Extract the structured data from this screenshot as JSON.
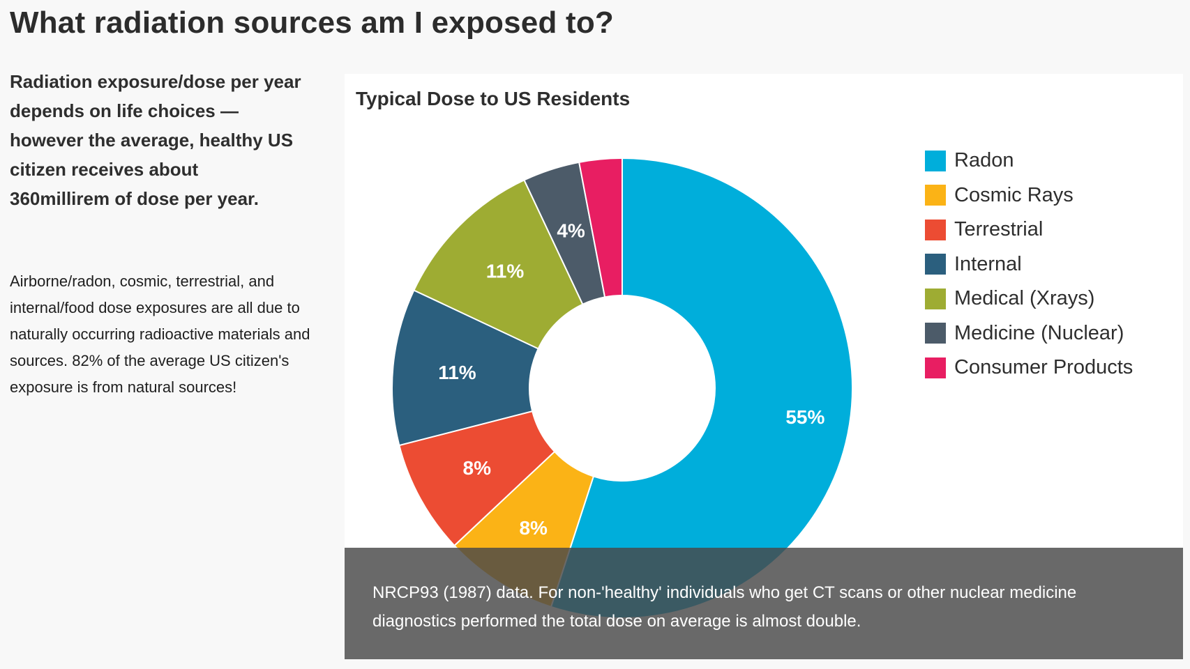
{
  "page": {
    "title": "What radiation sources am I exposed to?",
    "lead": "Radiation exposure/dose per year depends on life choices —however the average, healthy US citizen receives about 360millirem of dose per year.",
    "body": "Airborne/radon, cosmic, terrestrial, and internal/food dose exposures are all due to naturally occurring radioactive materials and sources. 82% of the average US citizen's exposure is from natural sources!"
  },
  "caption": {
    "text": "NRCP93 (1987) data. For non-'healthy' individuals who get CT scans or other nuclear medicine diagnostics performed the total dose on average is almost double."
  },
  "chart_data": {
    "type": "pie",
    "variant": "donut",
    "title": "Typical Dose to US Residents",
    "unit": "%",
    "categories": [
      "Radon",
      "Cosmic Rays",
      "Terrestrial",
      "Internal",
      "Medical (Xrays)",
      "Medicine (Nuclear)",
      "Consumer Products"
    ],
    "values": [
      55,
      8,
      8,
      11,
      11,
      4,
      3
    ],
    "labels": [
      "55%",
      "8%",
      "8%",
      "11%",
      "11%",
      "4%",
      ""
    ],
    "colors": [
      "#00aedb",
      "#fbb316",
      "#ec4c33",
      "#2b5f7e",
      "#9eac33",
      "#4c5b69",
      "#e81e62"
    ],
    "legend_position": "right",
    "start": "top, clockwise"
  }
}
